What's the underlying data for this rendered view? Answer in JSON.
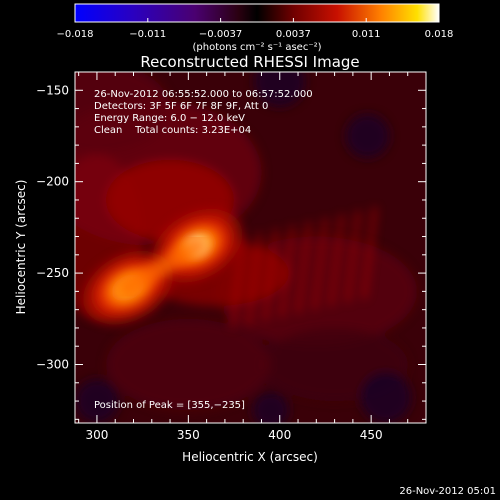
{
  "chart_data": {
    "type": "heatmap",
    "title": "Reconstructed RHESSI Image",
    "xlabel": "Heliocentric X (arcsec)",
    "ylabel": "Heliocentric Y (arcsec)",
    "xlim": [
      288,
      480
    ],
    "ylim": [
      -332,
      -140
    ],
    "xticks": [
      300,
      350,
      400,
      450
    ],
    "yticks": [
      -150,
      -200,
      -250,
      -300
    ],
    "colorbar": {
      "range": [
        -0.018,
        0.018
      ],
      "ticks": [
        "−0.018",
        "−0.011",
        "−0.0037",
        "0.0037",
        "0.011",
        "0.018"
      ],
      "unit_label": "(photons cm⁻² s⁻¹ asec⁻²)"
    },
    "annotations": [
      "26-Nov-2012 06:55:52.000 to 06:57:52.000",
      "Detectors: 3F 5F 6F 7F 8F 9F, Att 0",
      "Energy Range: 6.0 − 12.0 keV",
      "Clean    Total counts: 3.23E+04"
    ],
    "peak_label": "Position of Peak = [355,−235]",
    "peak": [
      355,
      -235
    ],
    "sources": [
      {
        "x": 355,
        "y": -235,
        "amp": 0.018
      },
      {
        "x": 317,
        "y": -258,
        "amp": 0.0095
      }
    ],
    "footer": "26-Nov-2012 05:01"
  }
}
